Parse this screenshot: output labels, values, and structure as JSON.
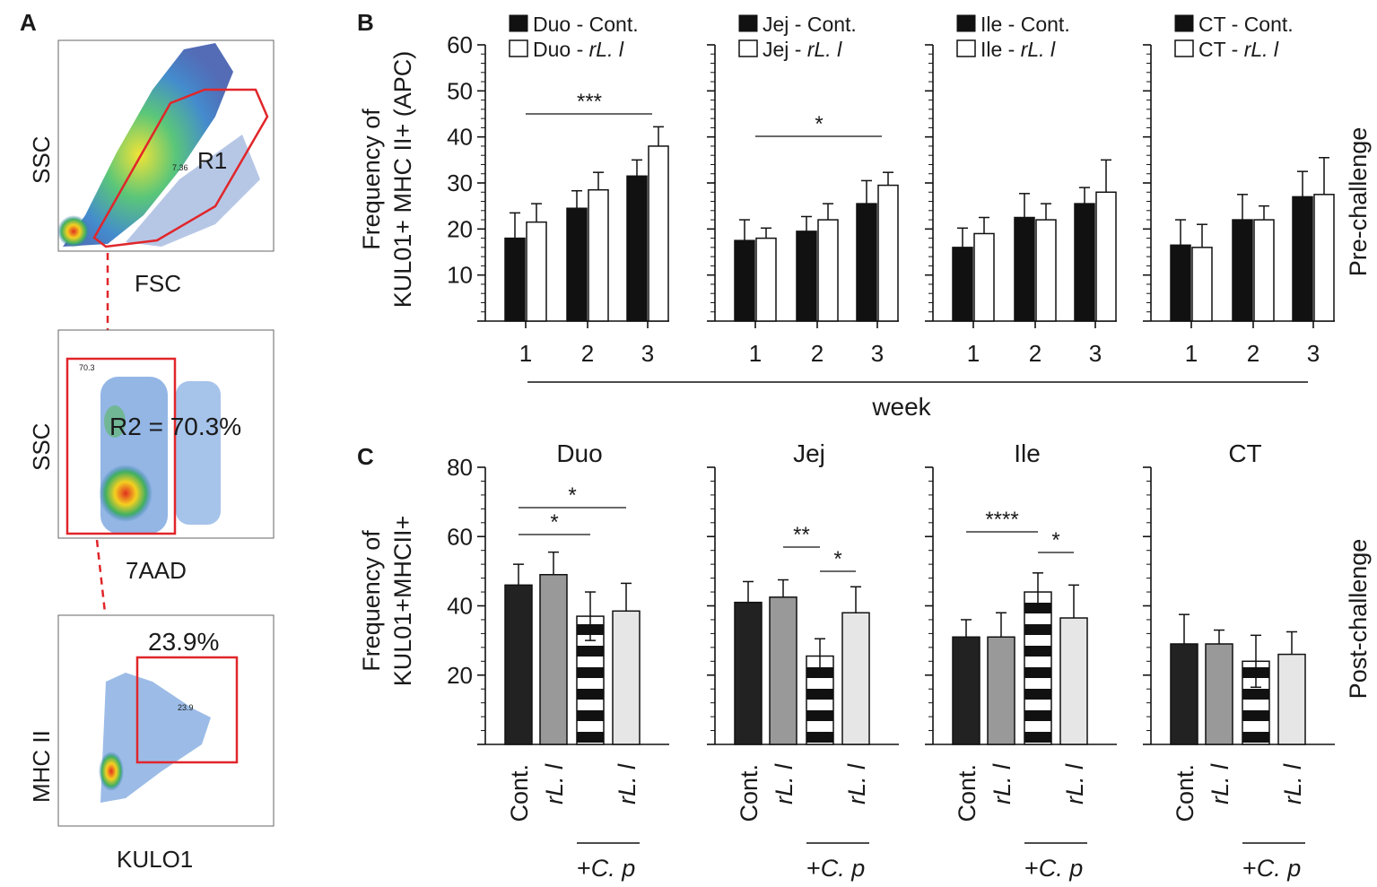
{
  "panel_labels": [
    "A",
    "B",
    "C"
  ],
  "flow": {
    "plots": [
      {
        "xlabel": "FSC",
        "ylabel": "SSC",
        "gate_label": "R1",
        "gate_value": "7.36",
        "gate_color": "#e0262a"
      },
      {
        "xlabel": "7AAD",
        "ylabel": "SSC",
        "gate_label": "R2 = 70.3%",
        "gate_value": "70.3",
        "gate_color": "#e0262a"
      },
      {
        "xlabel": "KULO1",
        "ylabel": "MHC II",
        "gate_label": "23.9%",
        "gate_value": "23.9",
        "gate_color": "#e0262a"
      }
    ]
  },
  "chart_data": [
    {
      "type": "bar",
      "title": "",
      "ylabel_line1": "Frequency of",
      "ylabel_line2": "KUL01+ MHC II+ (APC)",
      "xlabel": "week",
      "side_label": "Pre-challenge",
      "ylim": [
        0,
        60
      ],
      "yticks": [
        "10",
        "20",
        "30",
        "40",
        "50",
        "60"
      ],
      "categories": [
        "1",
        "2",
        "3"
      ],
      "groups": [
        {
          "name": "Duo",
          "legend": [
            {
              "prefix": "Duo - ",
              "label": "Cont.",
              "italic": false
            },
            {
              "prefix": "Duo - ",
              "label": "rL. l",
              "italic": true
            }
          ],
          "series": [
            {
              "name": "Cont.",
              "values": [
                18,
                24.5,
                31.5
              ],
              "errors": [
                5.5,
                3.8,
                3.5
              ]
            },
            {
              "name": "rL. l",
              "values": [
                21.5,
                28.5,
                38
              ],
              "errors": [
                4,
                3.8,
                4.2
              ]
            }
          ],
          "significance": [
            {
              "text": "***",
              "from_cat": 0,
              "to_cat": 2
            }
          ]
        },
        {
          "name": "Jej",
          "legend": [
            {
              "prefix": "Jej - ",
              "label": "Cont.",
              "italic": false
            },
            {
              "prefix": "Jej - ",
              "label": "rL. l",
              "italic": true
            }
          ],
          "series": [
            {
              "name": "Cont.",
              "values": [
                17.5,
                19.5,
                25.5
              ],
              "errors": [
                4.5,
                3.2,
                5
              ]
            },
            {
              "name": "rL. l",
              "values": [
                18,
                22,
                29.5
              ],
              "errors": [
                2.2,
                3.5,
                2.8
              ]
            }
          ],
          "significance": [
            {
              "text": "*",
              "from_cat": 0,
              "to_cat": 2
            }
          ]
        },
        {
          "name": "Ile",
          "legend": [
            {
              "prefix": "Ile - ",
              "label": "Cont.",
              "italic": false
            },
            {
              "prefix": "Ile - ",
              "label": "rL. l",
              "italic": true
            }
          ],
          "series": [
            {
              "name": "Cont.",
              "values": [
                16,
                22.5,
                25.5
              ],
              "errors": [
                4.2,
                5.2,
                3.5
              ]
            },
            {
              "name": "rL. l",
              "values": [
                19,
                22,
                28
              ],
              "errors": [
                3.5,
                3.5,
                7
              ]
            }
          ],
          "significance": []
        },
        {
          "name": "CT",
          "legend": [
            {
              "prefix": "CT - ",
              "label": "Cont.",
              "italic": false
            },
            {
              "prefix": "CT - ",
              "label": "rL. l",
              "italic": true
            }
          ],
          "series": [
            {
              "name": "Cont.",
              "values": [
                16.5,
                22,
                27
              ],
              "errors": [
                5.5,
                5.5,
                5.5
              ]
            },
            {
              "name": "rL. l",
              "values": [
                16,
                22,
                27.5
              ],
              "errors": [
                5,
                3,
                8
              ]
            }
          ],
          "significance": []
        }
      ],
      "colors": {
        "cont": "#111111",
        "rll": "#ffffff"
      }
    },
    {
      "type": "bar",
      "title": "",
      "ylabel_line1": "Frequency of",
      "ylabel_line2": "KUL01+MHCII+",
      "side_label": "Post-challenge",
      "ylim": [
        0,
        80
      ],
      "yticks": [
        "20",
        "40",
        "60",
        "80"
      ],
      "categories": [
        {
          "label": "Cont.",
          "italic": false
        },
        {
          "label": "rL. l",
          "italic": true
        },
        {
          "label": "",
          "italic": false
        },
        {
          "label": "rL. l",
          "italic": true
        }
      ],
      "challenge_label_prefix": "+",
      "challenge_label": "C. p",
      "groups": [
        {
          "name": "Duo",
          "values": [
            46,
            49,
            37,
            38.5
          ],
          "errors": [
            6,
            6.5,
            7,
            8
          ],
          "significance": [
            {
              "text": "*",
              "from_cat": 0,
              "to_cat": 2,
              "level": 0
            },
            {
              "text": "*",
              "from_cat": 0,
              "to_cat": 3,
              "level": 1
            }
          ]
        },
        {
          "name": "Jej",
          "values": [
            41,
            42.5,
            25.5,
            38
          ],
          "errors": [
            6,
            5,
            5,
            7.5
          ],
          "significance": [
            {
              "text": "**",
              "from_cat": 1,
              "to_cat": 2,
              "level": 1
            },
            {
              "text": "*",
              "from_cat": 2,
              "to_cat": 3,
              "level": 0
            }
          ]
        },
        {
          "name": "Ile",
          "values": [
            31,
            31,
            44,
            36.5
          ],
          "errors": [
            5,
            7,
            5.5,
            9.5
          ],
          "significance": [
            {
              "text": "****",
              "from_cat": 0,
              "to_cat": 2,
              "level": 1
            },
            {
              "text": "*",
              "from_cat": 2,
              "to_cat": 3,
              "level": 0
            }
          ]
        },
        {
          "name": "CT",
          "values": [
            29,
            29,
            24,
            26
          ],
          "errors": [
            8.5,
            4,
            7.5,
            6.5
          ],
          "significance": []
        }
      ],
      "colors": {
        "cont": "#222222",
        "rll": "#999999",
        "cp": "#ffffff",
        "stripe": "#111111",
        "rllcp": "#e6e6e6"
      }
    }
  ]
}
